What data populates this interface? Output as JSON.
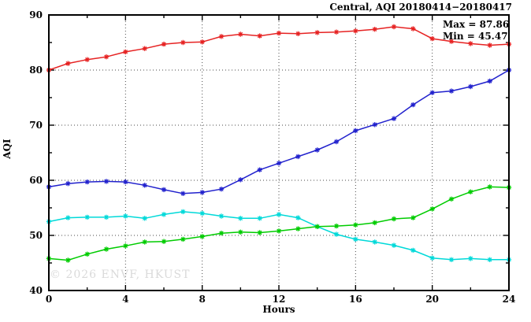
{
  "watermark": "© 2026 ENVF, HKUST",
  "chart_data": {
    "type": "line",
    "title": "Central, AQI 20180414−20180417",
    "xlabel": "Hours",
    "ylabel": "AQI",
    "xlim": [
      0,
      24
    ],
    "ylim": [
      40,
      90
    ],
    "grid": true,
    "grid_x": [
      4,
      8,
      12,
      16,
      20
    ],
    "grid_y": [
      50,
      60,
      70,
      80
    ],
    "x_major_ticks": [
      0,
      4,
      8,
      12,
      16,
      20,
      24
    ],
    "x_minor_ticks": [
      2,
      6,
      10,
      14,
      18,
      22
    ],
    "y_major_ticks": [
      40,
      50,
      60,
      70,
      80,
      90
    ],
    "y_minor_ticks": [
      45,
      55,
      65,
      75,
      85
    ],
    "legend_position": "none",
    "annotations": [
      {
        "text": "Max = 87.86"
      },
      {
        "text": "Min = 45.47"
      }
    ],
    "x": [
      0,
      1,
      2,
      3,
      4,
      5,
      6,
      7,
      8,
      9,
      10,
      11,
      12,
      13,
      14,
      15,
      16,
      17,
      18,
      19,
      20,
      21,
      22,
      23,
      24
    ],
    "series": [
      {
        "name": "red",
        "color": "#e62222",
        "marker": "asterisk",
        "values": [
          80.0,
          81.2,
          81.9,
          82.4,
          83.3,
          83.9,
          84.7,
          85.0,
          85.1,
          86.1,
          86.5,
          86.2,
          86.7,
          86.6,
          86.8,
          86.9,
          87.1,
          87.4,
          87.86,
          87.5,
          85.7,
          85.2,
          84.8,
          84.5,
          84.7
        ]
      },
      {
        "name": "blue",
        "color": "#2121cd",
        "marker": "asterisk",
        "values": [
          58.8,
          59.4,
          59.7,
          59.8,
          59.7,
          59.1,
          58.3,
          57.6,
          57.8,
          58.4,
          60.1,
          61.9,
          63.1,
          64.3,
          65.5,
          67.0,
          69.0,
          70.1,
          71.2,
          73.7,
          75.9,
          76.2,
          77.0,
          78.0,
          80.0
        ]
      },
      {
        "name": "cyan",
        "color": "#00d9d9",
        "marker": "asterisk",
        "values": [
          52.5,
          53.2,
          53.3,
          53.3,
          53.5,
          53.1,
          53.8,
          54.3,
          54.0,
          53.5,
          53.1,
          53.1,
          53.8,
          53.2,
          51.6,
          50.2,
          49.3,
          48.8,
          48.2,
          47.3,
          45.9,
          45.6,
          45.8,
          45.6,
          45.6
        ]
      },
      {
        "name": "green",
        "color": "#00cc00",
        "marker": "asterisk",
        "values": [
          45.8,
          45.5,
          46.6,
          47.5,
          48.1,
          48.8,
          48.9,
          49.3,
          49.8,
          50.4,
          50.6,
          50.5,
          50.8,
          51.2,
          51.6,
          51.7,
          51.9,
          52.3,
          53.0,
          53.2,
          54.8,
          56.6,
          57.9,
          58.8,
          58.7
        ]
      }
    ]
  }
}
